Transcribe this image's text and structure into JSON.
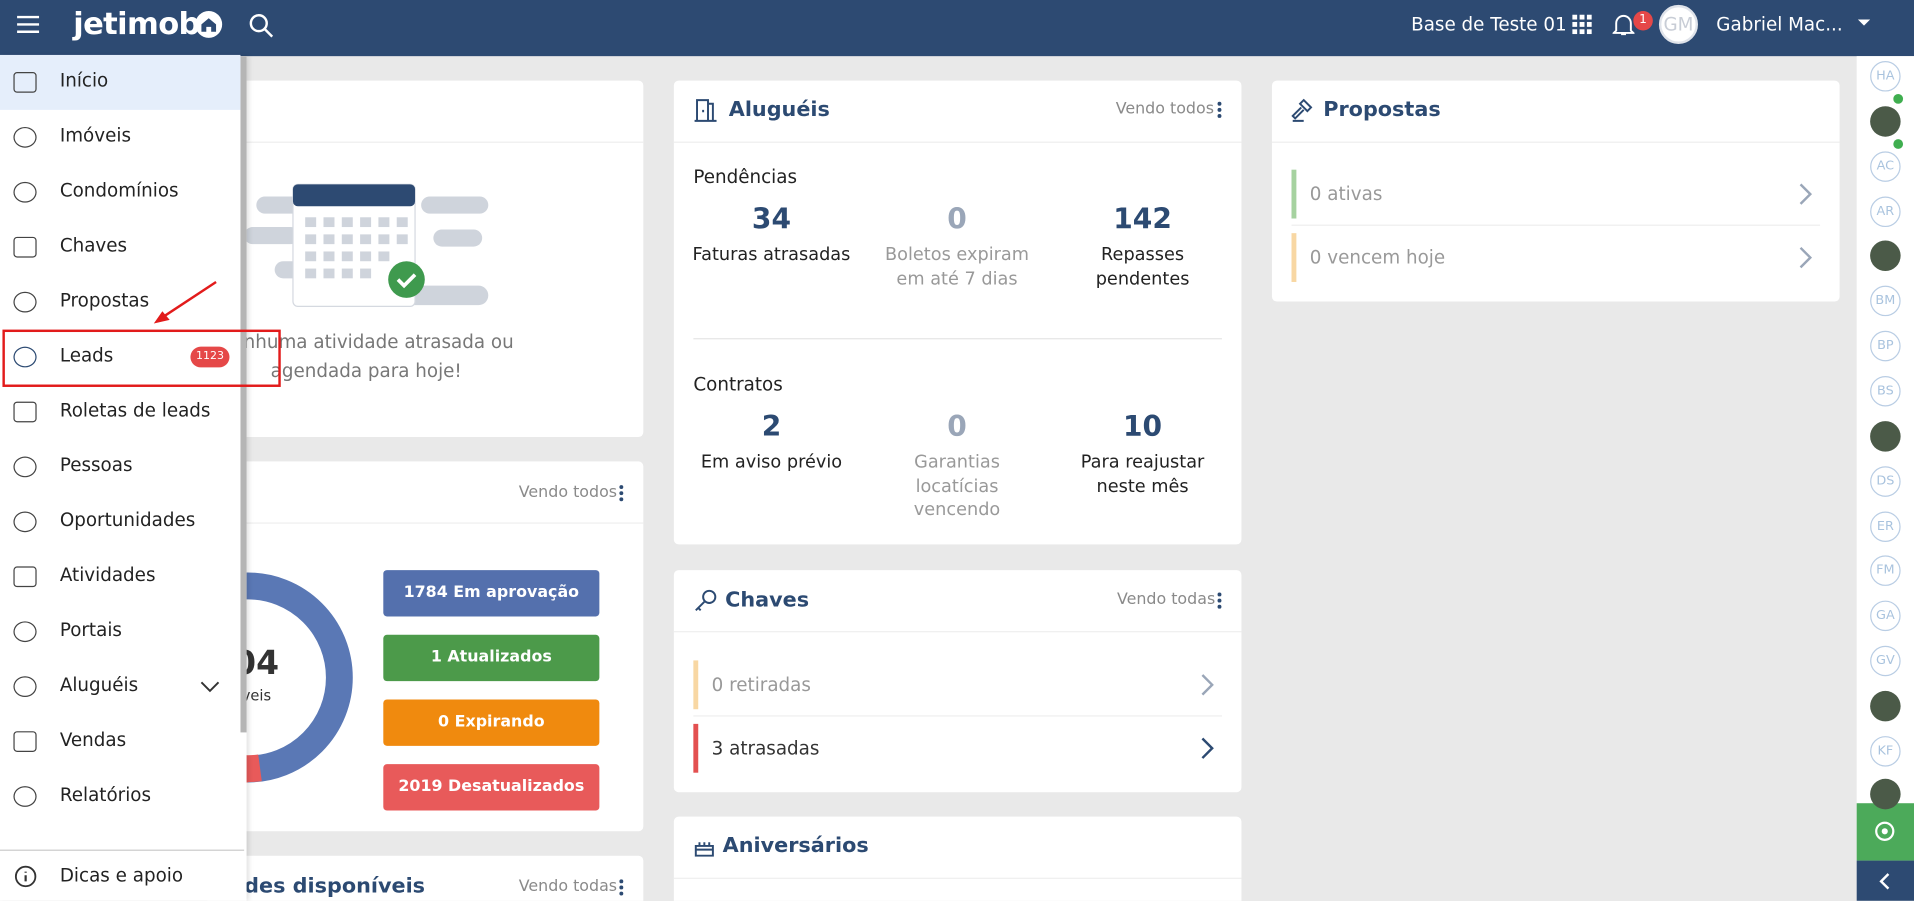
{
  "header": {
    "brand": "jetimob",
    "account": "Base de Teste 01",
    "notifications": 1,
    "avatar": "GM",
    "user": "Gabriel Mac..."
  },
  "sidebar": {
    "items": [
      {
        "label": "Início"
      },
      {
        "label": "Imóveis"
      },
      {
        "label": "Condomínios"
      },
      {
        "label": "Chaves"
      },
      {
        "label": "Propostas"
      },
      {
        "label": "Leads",
        "badge": 1123
      },
      {
        "label": "Roletas de leads"
      },
      {
        "label": "Pessoas"
      },
      {
        "label": "Oportunidades"
      },
      {
        "label": "Atividades"
      },
      {
        "label": "Portais"
      },
      {
        "label": "Aluguéis"
      },
      {
        "label": "Vendas"
      },
      {
        "label": "Relatórios"
      }
    ],
    "footer": "Dicas e apoio"
  },
  "activities": {
    "message": "Nenhuma atividade atrasada ou agendada para hoje!"
  },
  "properties": {
    "view_all": "Vendo todos",
    "total": "04",
    "total_label": "veis",
    "statuses": [
      {
        "label": "1784 Em aprovação",
        "color": "#5470ad"
      },
      {
        "label": "1 Atualizados",
        "color": "#4c9a4a"
      },
      {
        "label": "0 Expirando",
        "color": "#f08a0e"
      },
      {
        "label": "2019 Desatualizados",
        "color": "#e85a5a"
      }
    ]
  },
  "units": {
    "title": "des disponíveis",
    "view_all": "Vendo todas"
  },
  "rentals": {
    "title": "Aluguéis",
    "view_all": "Vendo todos",
    "sections": [
      {
        "title": "Pendências",
        "stats": [
          {
            "value": 34,
            "label": "Faturas atrasadas"
          },
          {
            "value": 0,
            "label": "Boletos expiram em até 7 dias"
          },
          {
            "value": 142,
            "label": "Repasses pendentes"
          }
        ]
      },
      {
        "title": "Contratos",
        "stats": [
          {
            "value": 2,
            "label": "Em aviso prévio"
          },
          {
            "value": 0,
            "label": "Garantias locatícias vencendo"
          },
          {
            "value": 10,
            "label": "Para reajustar neste mês"
          }
        ]
      }
    ]
  },
  "keys": {
    "title": "Chaves",
    "view_all": "Vendo todas",
    "rows": [
      "0 retiradas",
      "3 atrasadas"
    ]
  },
  "birthdays": {
    "title": "Aniversários"
  },
  "proposals": {
    "title": "Propostas",
    "rows": [
      "0 ativas",
      "0 vencem hoje"
    ]
  },
  "team": {
    "initials": [
      "HA",
      "AC",
      "AR",
      "BM",
      "BP",
      "BS",
      "DS",
      "ER",
      "FM",
      "GA",
      "GV",
      "KF"
    ]
  }
}
